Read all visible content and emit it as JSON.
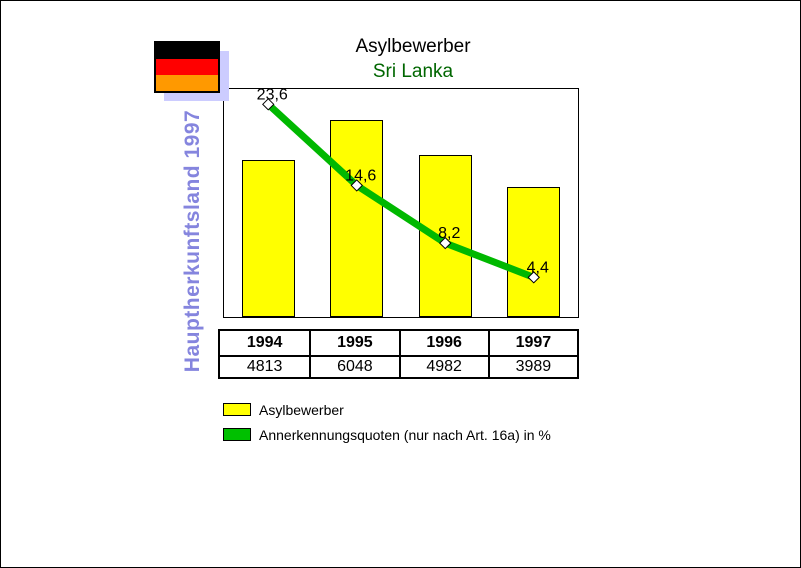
{
  "header": {
    "title": "Asylbewerber",
    "subtitle": "Sri Lanka",
    "subtitle_color": "#006600"
  },
  "side_label": {
    "text": "Hauptherkunftsland 1997",
    "color": "#8585de"
  },
  "flag": {
    "name": "germany-flag",
    "stripe_colors": [
      "#000000",
      "#ff0000",
      "#ff9900"
    ],
    "shadow_color": "#ccccff"
  },
  "chart_data": {
    "type": "bar+line",
    "categories": [
      "1994",
      "1995",
      "1996",
      "1997"
    ],
    "series": [
      {
        "name": "Asylbewerber",
        "type": "bar",
        "values": [
          4813,
          6048,
          4982,
          3989
        ],
        "color": "#ffff00",
        "ylim": [
          0,
          7000
        ]
      },
      {
        "name": "Annerkennungsquoten (nur nach Art. 16a) in %",
        "type": "line",
        "values": [
          23.6,
          14.6,
          8.2,
          4.4
        ],
        "labels": [
          "23,6",
          "14,6",
          "8,2",
          "4,4"
        ],
        "color": "#00b800",
        "marker": "diamond-white",
        "ylim": [
          0,
          25.3
        ]
      }
    ],
    "title": "Asylbewerber",
    "subtitle": "Sri Lanka",
    "grid": false,
    "legend_position": "bottom-left",
    "table": {
      "header_row": [
        "1994",
        "1995",
        "1996",
        "1997"
      ],
      "value_row": [
        "4813",
        "6048",
        "4982",
        "3989"
      ]
    }
  },
  "legend": {
    "items": [
      {
        "label": "Asylbewerber",
        "color": "#ffff00"
      },
      {
        "label": "Annerkennungsquoten (nur nach Art. 16a) in %",
        "color": "#00c000"
      }
    ]
  }
}
